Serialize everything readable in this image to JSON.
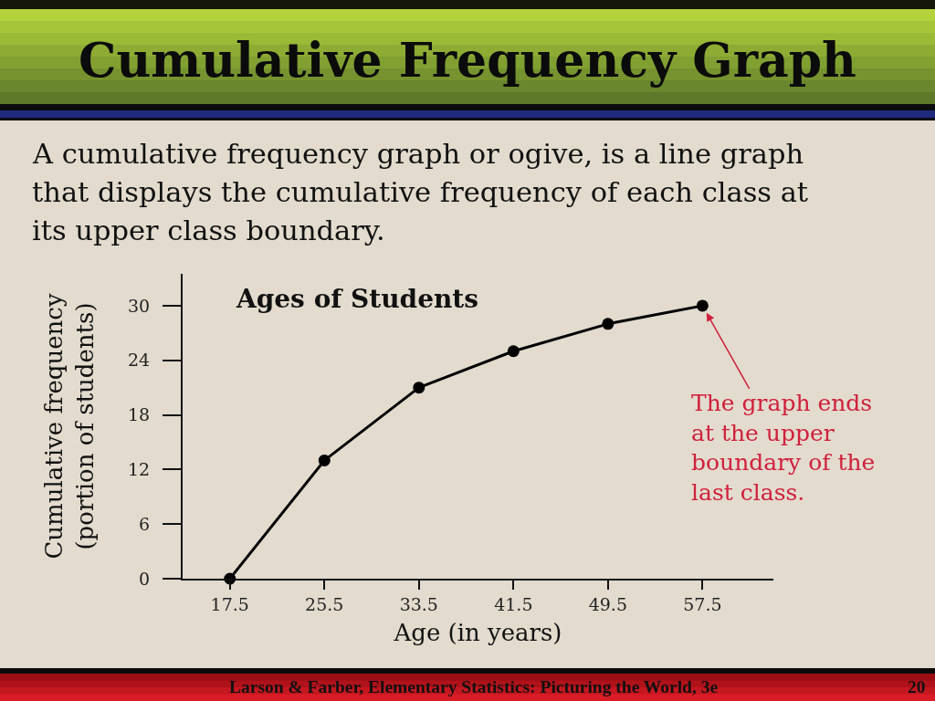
{
  "chart_data": {
    "type": "line",
    "title": "Cumulative Frequency Graph",
    "subtitle": "A cumulative frequency graph or ogive, is a line graph\nthat displays the cumulative frequency of each class at\nits upper class boundary.",
    "xlabel": "Age (in years)",
    "ylabel": "Cumulative frequency\n(portion of students)",
    "x": [
      17.5,
      25.5,
      33.5,
      41.5,
      49.5,
      57.5
    ],
    "series": [
      {
        "color": "#000000",
        "values": [
          0,
          13,
          21,
          25,
          28,
          30
        ]
      }
    ],
    "xlim": [
      13.5,
      63.5
    ],
    "xticks": [
      17.5,
      25.5,
      33.5,
      41.5,
      49.5,
      57.5
    ],
    "ylim": [
      0,
      33.5
    ],
    "yticks": [
      0,
      6,
      12,
      18,
      24,
      30
    ],
    "marker": "circle",
    "line_style": "solid",
    "annotations": [
      "Ages of Students",
      {
        "text": "The graph ends\nat the upper\nboundary of the\nlast class.",
        "x": 57.5,
        "y": 30
      },
      "Larson & Farber, Elementary Statistics: Picturing the World, 3e",
      "20"
    ]
  }
}
